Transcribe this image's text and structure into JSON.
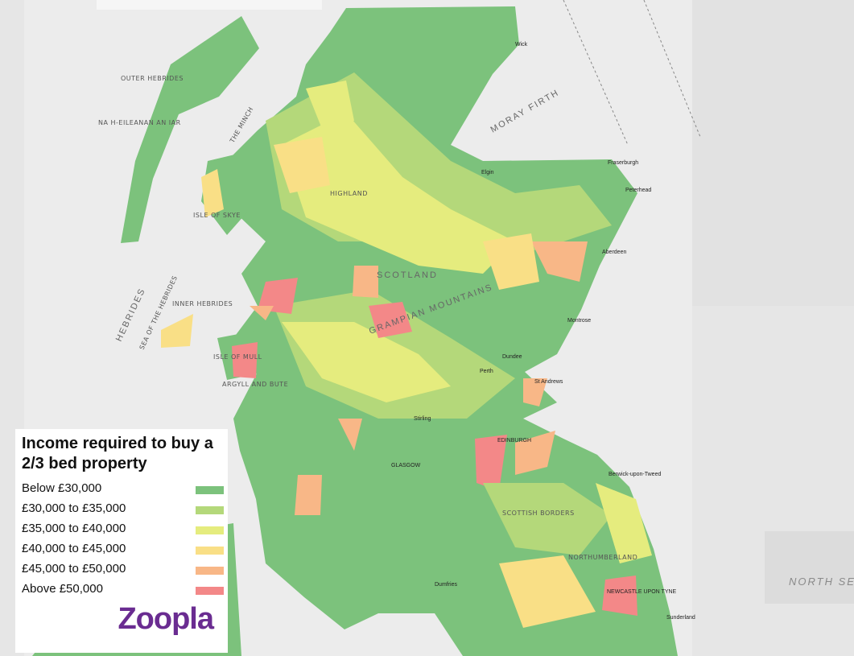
{
  "legend": {
    "title": "Income required to buy a 2/3 bed property",
    "items": [
      {
        "label": "Below £30,000",
        "color": "#7cc27c"
      },
      {
        "label": "£30,000 to £35,000",
        "color": "#b4d87a"
      },
      {
        "label": "£35,000 to £40,000",
        "color": "#e5ec7e"
      },
      {
        "label": "£40,000 to £45,000",
        "color": "#f9df86"
      },
      {
        "label": "£45,000 to £50,000",
        "color": "#f8b787"
      },
      {
        "label": "Above £50,000",
        "color": "#f38888"
      }
    ]
  },
  "logo": "Zoopla",
  "map_labels": [
    "OUTER HEBRIDES",
    "NA H-EILEANAN AN IAR",
    "INNER HEBRIDES",
    "HEBRIDES",
    "SEA OF THE HEBRIDES",
    "THE MINCH",
    "MORAY FIRTH",
    "NORTH SE",
    "SCOTLAND",
    "GRAMPIAN MOUNTAINS",
    "HIGHLAND",
    "ISLE OF SKYE",
    "ISLE OF MULL",
    "ARGYLL AND BUTE",
    "EDINBURGH",
    "GLASGOW",
    "SCOTTISH BORDERS",
    "NORTHUMBERLAND",
    "NEWCASTLE UPON TYNE",
    "Aberdeen",
    "Peterhead",
    "Fraserburgh",
    "Dundee",
    "Perth",
    "Stirling",
    "Wick",
    "Elgin",
    "Montrose",
    "St Andrews",
    "Berwick-upon-Tweed",
    "Dumfries",
    "Sunderland"
  ]
}
